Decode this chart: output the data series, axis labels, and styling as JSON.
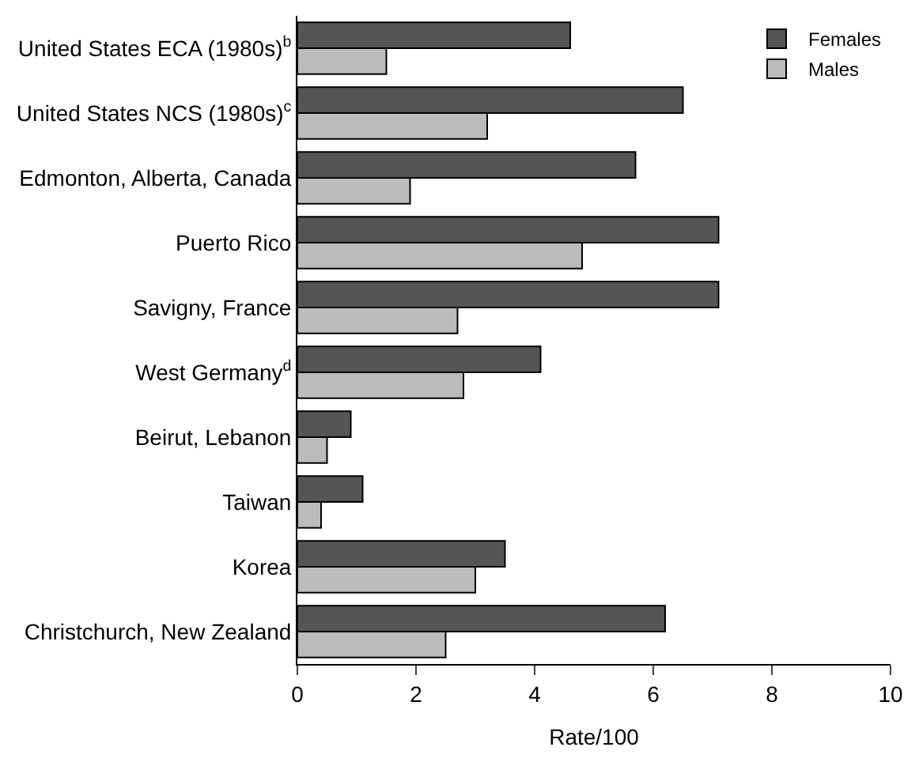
{
  "chart_data": {
    "type": "bar",
    "orientation": "horizontal",
    "xlabel": "Rate/100",
    "categories": [
      "United States ECA (1980s)$^{b}$",
      "United States NCS (1980s)$^{c}$",
      "Edmonton, Alberta, Canada",
      "Puerto Rico",
      "Savigny, France",
      "West Germany$^{d}$",
      "Beirut, Lebanon",
      "Taiwan",
      "Korea",
      "Christchurch, New Zealand"
    ],
    "series": [
      {
        "name": "Females",
        "color": "#555555",
        "values": [
          4.6,
          6.5,
          5.7,
          7.1,
          7.1,
          4.1,
          0.9,
          1.1,
          3.5,
          6.2
        ]
      },
      {
        "name": "Males",
        "color": "#bbbbbb",
        "values": [
          1.5,
          3.2,
          1.9,
          4.8,
          2.7,
          2.8,
          0.5,
          0.4,
          3.0,
          2.5
        ]
      }
    ],
    "xlim": [
      0,
      10
    ],
    "xticks": [
      0,
      2,
      4,
      6,
      8,
      10
    ],
    "legend": "top right"
  }
}
